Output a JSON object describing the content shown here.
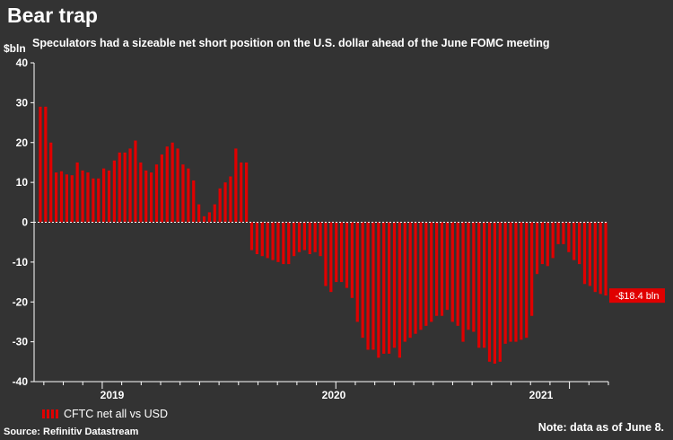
{
  "title": "Bear trap",
  "subtitle": "Speculators had a sizeable net short position on the U.S. dollar ahead of the June FOMC meeting",
  "source": "Source: Refinitiv Datastream",
  "note": "Note: data as of June 8.",
  "colors": {
    "background": "#333333",
    "bar": "#e00000",
    "label_bg": "#e00000",
    "axis": "#ffffff"
  },
  "chart_data": {
    "type": "bar",
    "title": "Bear trap",
    "xlabel": "",
    "ylabel": "$bln",
    "ylim": [
      -40,
      40
    ],
    "yticks": [
      40,
      30,
      20,
      10,
      0,
      -10,
      -20,
      -30,
      -40
    ],
    "year_labels": [
      "2019",
      "2020",
      "2021"
    ],
    "series": [
      {
        "name": "CFTC net all vs USD",
        "values": [
          29,
          29,
          20,
          12.5,
          12.8,
          12,
          11.8,
          15,
          13,
          12.5,
          11,
          11,
          13.5,
          13,
          15.5,
          17.5,
          17.5,
          18.5,
          20.5,
          15,
          13,
          12.5,
          14.5,
          17,
          19,
          20,
          18.5,
          14.5,
          13.5,
          10.5,
          4.5,
          1.5,
          2.5,
          4.5,
          8.5,
          10,
          11.5,
          18.5,
          15,
          15,
          -7,
          -8,
          -8.5,
          -9,
          -9.5,
          -10,
          -10.5,
          -10.5,
          -8.5,
          -7.5,
          -7,
          -8,
          -7.5,
          -8.5,
          -16,
          -17.5,
          -15,
          -15,
          -16.5,
          -19,
          -25,
          -29,
          -32,
          -32,
          -34,
          -33,
          -33,
          -31.5,
          -34,
          -30,
          -29,
          -28,
          -27,
          -26,
          -25,
          -23.5,
          -23.5,
          -22,
          -25,
          -26,
          -30,
          -27,
          -27.5,
          -31.5,
          -31.5,
          -35,
          -35.5,
          -35,
          -30.5,
          -30,
          -30,
          -29.5,
          -29,
          -23.5,
          -13,
          -10.5,
          -11,
          -9,
          -5.5,
          -5.5,
          -7.5,
          -9.5,
          -10.5,
          -15.5,
          -16,
          -17.5,
          -18,
          -18.4
        ]
      }
    ],
    "last_value_label": "-$18.4 bln",
    "legend": "bottom-left"
  }
}
